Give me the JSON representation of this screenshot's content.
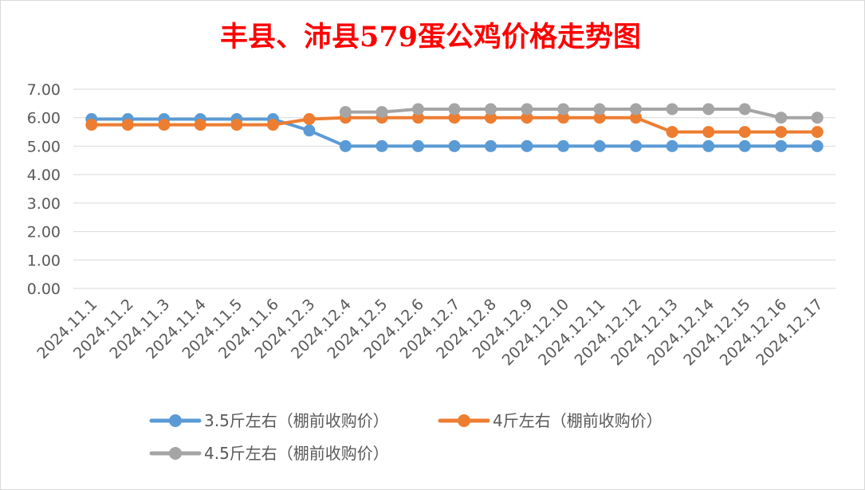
{
  "chart_data": {
    "type": "line",
    "title": "丰县、沛县579蛋公鸡价格走势图",
    "xlabel": "",
    "ylabel": "",
    "ylim": [
      0,
      7
    ],
    "y_ticks": [
      "0.00",
      "1.00",
      "2.00",
      "3.00",
      "4.00",
      "5.00",
      "6.00",
      "7.00"
    ],
    "grid": true,
    "legend_position": "bottom",
    "categories": [
      "2024.11.1",
      "2024.11.2",
      "2024.11.3",
      "2024.11.4",
      "2024.11.5",
      "2024.11.6",
      "2024.12.3",
      "2024.12.4",
      "2024.12.5",
      "2024.12.6",
      "2024.12.7",
      "2024.12.8",
      "2024.12.9",
      "2024.12.10",
      "2024.12.11",
      "2024.12.12",
      "2024.12.13",
      "2024.12.14",
      "2024.12.15",
      "2024.12.16",
      "2024.12.17"
    ],
    "series": [
      {
        "name": "3.5斤左右（棚前收购价）",
        "color": "#5b9bd5",
        "values": [
          5.95,
          5.95,
          5.95,
          5.95,
          5.95,
          5.95,
          5.55,
          5.0,
          5.0,
          5.0,
          5.0,
          5.0,
          5.0,
          5.0,
          5.0,
          5.0,
          5.0,
          5.0,
          5.0,
          5.0,
          5.0
        ]
      },
      {
        "name": "4斤左右（棚前收购价）",
        "color": "#ed7d31",
        "values": [
          5.75,
          5.75,
          5.75,
          5.75,
          5.75,
          5.75,
          5.95,
          6.0,
          6.0,
          6.0,
          6.0,
          6.0,
          6.0,
          6.0,
          6.0,
          6.0,
          5.5,
          5.5,
          5.5,
          5.5,
          5.5
        ]
      },
      {
        "name": "4.5斤左右（棚前收购价）",
        "color": "#a5a5a5",
        "values": [
          null,
          null,
          null,
          null,
          null,
          null,
          null,
          6.2,
          6.2,
          6.3,
          6.3,
          6.3,
          6.3,
          6.3,
          6.3,
          6.3,
          6.3,
          6.3,
          6.3,
          6.0,
          6.0
        ]
      }
    ]
  }
}
